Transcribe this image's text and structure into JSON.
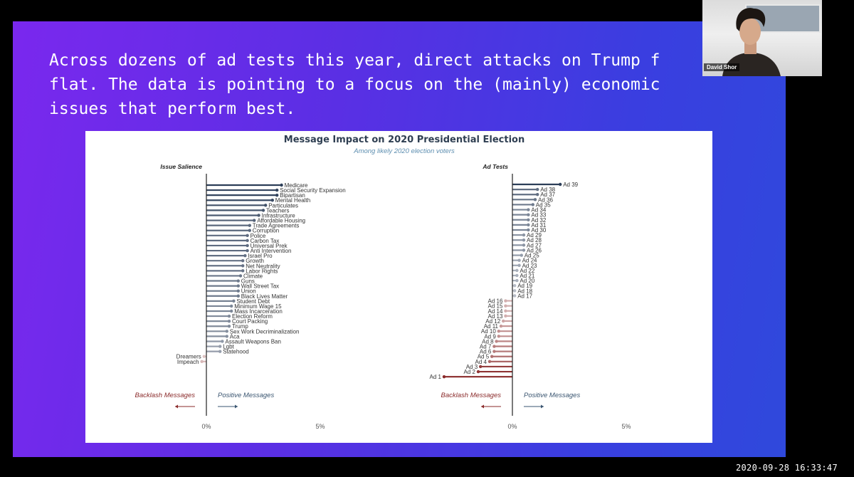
{
  "headline": "Across dozens of ad tests this year, direct attacks on Trump f\nflat. The data is pointing to a focus on the (mainly) economic\nissues that perform best.",
  "participant": {
    "name": "David Shor"
  },
  "timestamp": "2020-09-28 16:33:47",
  "colors": {
    "positive_dark": "#2c3e58",
    "positive_light": "#d0d3da",
    "negative": "#8a2a2a",
    "axis": "#222222",
    "label": "#333333",
    "subtitle": "#5d8eb0"
  },
  "chart_data": [
    {
      "type": "lollipop",
      "title": "Message Impact on 2020 Presidential Election",
      "subtitle": "Among likely 2020 election voters",
      "panel_title": "Issue Salience",
      "x_tick_labels": [
        "0%",
        "5%"
      ],
      "xlim": [
        0,
        5
      ],
      "legend": {
        "negative": "Backlash Messages",
        "positive": "Positive Messages"
      },
      "categories": [
        "Medicare",
        "Social Security Expansion",
        "Bipartisan",
        "Mental Health",
        "Particulates",
        "Teachers",
        "Infrastructure",
        "Affordable Housing",
        "Trade Agreements",
        "Corruption",
        "Police",
        "Carbon Tax",
        "Universal Prek",
        "Anti Intervention",
        "Israel Pro",
        "Growth",
        "Net Neutrality",
        "Labor Rights",
        "Climate",
        "Guns",
        "Wall Street Tax",
        "Union",
        "Black Lives Matter",
        "Student Debt",
        "Minimum Wage 15",
        "Mass Incarceration",
        "Election Reform",
        "Court Packing",
        "Trump",
        "Sex Work Decriminalization",
        "Aca",
        "Assault Weapons Ban",
        "Lgbt",
        "Statehood",
        "Dreamers",
        "Impeach"
      ],
      "values": [
        3.3,
        3.1,
        3.1,
        2.9,
        2.6,
        2.5,
        2.3,
        2.1,
        1.9,
        1.9,
        1.8,
        1.8,
        1.8,
        1.8,
        1.7,
        1.6,
        1.6,
        1.6,
        1.5,
        1.4,
        1.4,
        1.4,
        1.4,
        1.2,
        1.1,
        1.1,
        1.0,
        1.0,
        1.0,
        0.9,
        0.9,
        0.7,
        0.6,
        0.6,
        -0.1,
        -0.2
      ]
    },
    {
      "type": "lollipop",
      "panel_title": "Ad Tests",
      "x_tick_labels": [
        "0%",
        "5%"
      ],
      "xlim": [
        0,
        5
      ],
      "legend": {
        "negative": "Backlash Messages",
        "positive": "Positive Messages"
      },
      "categories": [
        "Ad 39",
        "Ad 38",
        "Ad 37",
        "Ad 36",
        "Ad 35",
        "Ad 34",
        "Ad 33",
        "Ad 32",
        "Ad 31",
        "Ad 30",
        "Ad 29",
        "Ad 28",
        "Ad 27",
        "Ad 26",
        "Ad 25",
        "Ad 24",
        "Ad 23",
        "Ad 22",
        "Ad 21",
        "Ad 20",
        "Ad 19",
        "Ad 18",
        "Ad 17",
        "Ad 16",
        "Ad 15",
        "Ad 14",
        "Ad 13",
        "Ad 12",
        "Ad 11",
        "Ad 10",
        "Ad 9",
        "Ad 8",
        "Ad 7",
        "Ad 6",
        "Ad 5",
        "Ad 4",
        "Ad 3",
        "Ad 2",
        "Ad 1"
      ],
      "values": [
        2.1,
        1.1,
        1.1,
        1.0,
        0.9,
        0.7,
        0.7,
        0.7,
        0.7,
        0.7,
        0.5,
        0.5,
        0.5,
        0.5,
        0.4,
        0.3,
        0.3,
        0.2,
        0.2,
        0.2,
        0.1,
        0.1,
        0.1,
        -0.3,
        -0.3,
        -0.3,
        -0.3,
        -0.4,
        -0.5,
        -0.6,
        -0.6,
        -0.7,
        -0.8,
        -0.8,
        -0.9,
        -1.0,
        -1.4,
        -1.5,
        -3.0
      ]
    }
  ]
}
